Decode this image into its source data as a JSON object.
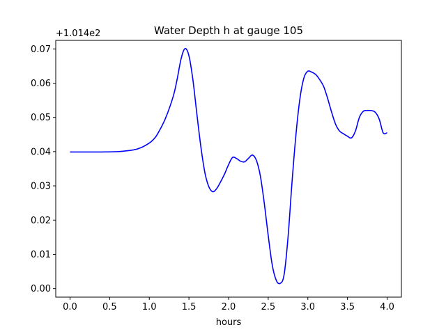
{
  "chart_data": {
    "type": "line",
    "title": "Water Depth h at gauge 105",
    "xlabel": "hours",
    "ylabel": "",
    "offset_label": "+1.014e2",
    "xlim": [
      -0.18,
      4.18
    ],
    "ylim": [
      -0.0025,
      0.0725
    ],
    "xticks": [
      0.0,
      0.5,
      1.0,
      1.5,
      2.0,
      2.5,
      3.0,
      3.5,
      4.0
    ],
    "xtick_labels": [
      "0.0",
      "0.5",
      "1.0",
      "1.5",
      "2.0",
      "2.5",
      "3.0",
      "3.5",
      "4.0"
    ],
    "yticks": [
      0.0,
      0.01,
      0.02,
      0.03,
      0.04,
      0.05,
      0.06,
      0.07
    ],
    "ytick_labels": [
      "0.00",
      "0.01",
      "0.02",
      "0.03",
      "0.04",
      "0.05",
      "0.06",
      "0.07"
    ],
    "grid": false,
    "series": [
      {
        "name": "",
        "color": "#0000ff",
        "x": [
          0.0,
          0.2,
          0.4,
          0.6,
          0.8,
          0.9,
          1.0,
          1.05,
          1.1,
          1.2,
          1.3,
          1.35,
          1.4,
          1.45,
          1.5,
          1.55,
          1.6,
          1.65,
          1.7,
          1.75,
          1.8,
          1.85,
          1.9,
          1.95,
          2.0,
          2.05,
          2.1,
          2.15,
          2.2,
          2.25,
          2.3,
          2.35,
          2.4,
          2.45,
          2.5,
          2.55,
          2.6,
          2.65,
          2.7,
          2.75,
          2.8,
          2.85,
          2.9,
          2.95,
          3.0,
          3.05,
          3.1,
          3.15,
          3.2,
          3.25,
          3.3,
          3.35,
          3.4,
          3.45,
          3.5,
          3.55,
          3.6,
          3.65,
          3.7,
          3.75,
          3.8,
          3.85,
          3.9,
          3.95,
          4.0
        ],
        "y": [
          0.0399,
          0.0399,
          0.0399,
          0.04,
          0.0405,
          0.0412,
          0.0425,
          0.0435,
          0.045,
          0.0495,
          0.056,
          0.061,
          0.067,
          0.0701,
          0.068,
          0.061,
          0.051,
          0.0415,
          0.034,
          0.0298,
          0.0283,
          0.0292,
          0.0312,
          0.0335,
          0.0362,
          0.0383,
          0.038,
          0.0372,
          0.037,
          0.038,
          0.039,
          0.0375,
          0.033,
          0.025,
          0.0155,
          0.007,
          0.0025,
          0.0015,
          0.004,
          0.015,
          0.031,
          0.045,
          0.0555,
          0.0615,
          0.0635,
          0.0632,
          0.0625,
          0.061,
          0.059,
          0.0555,
          0.0515,
          0.048,
          0.046,
          0.0452,
          0.0445,
          0.044,
          0.046,
          0.05,
          0.0518,
          0.052,
          0.052,
          0.0515,
          0.0495,
          0.0455,
          0.0455
        ]
      }
    ]
  }
}
